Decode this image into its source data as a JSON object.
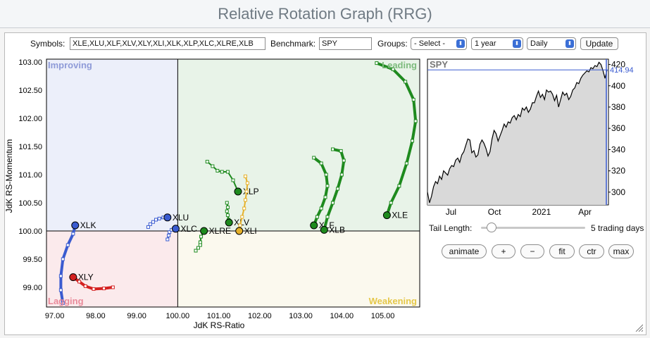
{
  "page_title": "Relative Rotation Graph (RRG)",
  "controls": {
    "symbols_label": "Symbols:",
    "symbols_value": "XLE,XLU,XLF,XLV,XLY,XLI,XLK,XLP,XLC,XLRE,XLB",
    "benchmark_label": "Benchmark:",
    "benchmark_value": "SPY",
    "groups_label": "Groups:",
    "groups_value": "- Select -",
    "period_value": "1 year",
    "frequency_value": "Daily",
    "update_label": "Update"
  },
  "quadrants": {
    "improving": "Improving",
    "leading": "Leading",
    "lagging": "Lagging",
    "weakening": "Weakening",
    "colors": {
      "improving": "#eceffa",
      "leading": "#e8f3e8",
      "lagging": "#fbeaec",
      "weakening": "#fbf9ee"
    }
  },
  "chart_data": [
    {
      "type": "scatter",
      "title": "",
      "xlabel": "JdK RS-Ratio",
      "ylabel": "JdK RS-Momentum",
      "xlim": [
        96.8,
        105.9
      ],
      "ylim": [
        98.65,
        103.05
      ],
      "x_ticks": [
        "97.00",
        "98.00",
        "99.00",
        "100.00",
        "101.00",
        "102.00",
        "103.00",
        "104.00",
        "105.00"
      ],
      "y_ticks": [
        "103.00",
        "102.50",
        "102.00",
        "101.50",
        "101.00",
        "100.50",
        "100.00",
        "99.50",
        "99.00"
      ],
      "grid": false,
      "center": [
        100,
        100
      ],
      "series": [
        {
          "name": "XLE",
          "color": "#1e8a1e",
          "tail": [
            [
              104.85,
              102.98
            ],
            [
              105.25,
              102.87
            ],
            [
              105.55,
              102.65
            ],
            [
              105.75,
              102.33
            ],
            [
              105.8,
              101.95
            ],
            [
              105.72,
              101.6
            ],
            [
              105.58,
              101.2
            ],
            [
              105.4,
              100.8
            ],
            [
              105.2,
              100.5
            ],
            [
              105.1,
              100.28
            ]
          ]
        },
        {
          "name": "XLF",
          "color": "#1e8a1e",
          "tail": [
            [
              103.32,
              101.3
            ],
            [
              103.5,
              101.2
            ],
            [
              103.62,
              101.0
            ],
            [
              103.65,
              100.8
            ],
            [
              103.6,
              100.6
            ],
            [
              103.5,
              100.4
            ],
            [
              103.4,
              100.25
            ],
            [
              103.32,
              100.1
            ]
          ]
        },
        {
          "name": "XLB",
          "color": "#1e8a1e",
          "tail": [
            [
              103.78,
              101.45
            ],
            [
              103.98,
              101.42
            ],
            [
              104.05,
              101.25
            ],
            [
              104.0,
              101.0
            ],
            [
              103.9,
              100.75
            ],
            [
              103.78,
              100.5
            ],
            [
              103.65,
              100.25
            ],
            [
              103.57,
              100.02
            ]
          ]
        },
        {
          "name": "XLP",
          "color": "#1e8a1e",
          "tail": [
            [
              100.72,
              101.23
            ],
            [
              100.85,
              101.15
            ],
            [
              100.97,
              101.07
            ],
            [
              101.08,
              101.05
            ],
            [
              101.22,
              101.05
            ],
            [
              101.35,
              100.9
            ],
            [
              101.47,
              100.7
            ]
          ]
        },
        {
          "name": "XLV",
          "color": "#1e8a1e",
          "tail": [
            [
              101.2,
              100.5
            ],
            [
              101.22,
              100.42
            ],
            [
              101.2,
              100.35
            ],
            [
              101.22,
              100.28
            ],
            [
              101.24,
              100.2
            ],
            [
              101.25,
              100.15
            ]
          ]
        },
        {
          "name": "XLI",
          "color": "#e5b02a",
          "tail": [
            [
              101.65,
              100.97
            ],
            [
              101.7,
              100.85
            ],
            [
              101.68,
              100.7
            ],
            [
              101.65,
              100.55
            ],
            [
              101.62,
              100.4
            ],
            [
              101.57,
              100.25
            ],
            [
              101.52,
              100.1
            ],
            [
              101.5,
              100.0
            ]
          ]
        },
        {
          "name": "XLRE",
          "color": "#1e8a1e",
          "tail": [
            [
              100.44,
              99.65
            ],
            [
              100.5,
              99.7
            ],
            [
              100.55,
              99.75
            ],
            [
              100.55,
              99.8
            ],
            [
              100.57,
              99.9
            ],
            [
              100.62,
              99.97
            ],
            [
              100.64,
              100.0
            ]
          ]
        },
        {
          "name": "XLU",
          "color": "#3a5bd0",
          "tail": [
            [
              99.28,
              100.07
            ],
            [
              99.33,
              100.12
            ],
            [
              99.4,
              100.16
            ],
            [
              99.47,
              100.2
            ],
            [
              99.55,
              100.22
            ],
            [
              99.65,
              100.24
            ],
            [
              99.75,
              100.24
            ]
          ]
        },
        {
          "name": "XLC",
          "color": "#3a5bd0",
          "tail": [
            [
              99.75,
              99.85
            ],
            [
              99.78,
              99.92
            ],
            [
              99.8,
              99.98
            ],
            [
              99.85,
              100.02
            ],
            [
              99.95,
              100.04
            ]
          ]
        },
        {
          "name": "XLK",
          "color": "#3a5bd0",
          "tail": [
            [
              97.2,
              98.72
            ],
            [
              97.15,
              98.95
            ],
            [
              97.15,
              99.2
            ],
            [
              97.2,
              99.5
            ],
            [
              97.32,
              99.75
            ],
            [
              97.45,
              99.95
            ],
            [
              97.5,
              100.1
            ]
          ]
        },
        {
          "name": "XLY",
          "color": "#d42020",
          "tail": [
            [
              98.42,
              99.0
            ],
            [
              98.2,
              98.98
            ],
            [
              97.95,
              98.97
            ],
            [
              97.75,
              99.02
            ],
            [
              97.6,
              99.1
            ],
            [
              97.45,
              99.18
            ]
          ]
        }
      ]
    },
    {
      "type": "area",
      "title": "SPY",
      "last_value_label": "414.94",
      "x_ticks": [
        "Jul",
        "Oct",
        "2021",
        "Apr"
      ],
      "y_ticks": [
        "420",
        "400",
        "380",
        "360",
        "340",
        "320",
        "300"
      ],
      "ylim": [
        288,
        425
      ],
      "series": [
        {
          "name": "SPY",
          "values": [
            300,
            290,
            296,
            305,
            310,
            308,
            315,
            312,
            320,
            318,
            316,
            322,
            325,
            324,
            330,
            332,
            328,
            335,
            338,
            344,
            350,
            349,
            337,
            339,
            333,
            335,
            345,
            349,
            346,
            341,
            334,
            338,
            350,
            358,
            355,
            348,
            353,
            358,
            364,
            361,
            366,
            365,
            370,
            372,
            368,
            373,
            371,
            379,
            377,
            380,
            375,
            378,
            384,
            384,
            390,
            395,
            389,
            392,
            387,
            396,
            394,
            395,
            392,
            386,
            391,
            380,
            387,
            394,
            391,
            393,
            387,
            390,
            396,
            398,
            403,
            402,
            407,
            410,
            412,
            414,
            413,
            417,
            416,
            419,
            418,
            422,
            420,
            414,
            407,
            414.94
          ]
        }
      ]
    }
  ],
  "right_panel": {
    "tail_length_label": "Tail Length:",
    "tail_length_value": "5 trading days",
    "tail_length_fraction": 0.1,
    "buttons": [
      "animate",
      "+",
      "−",
      "fit",
      "ctr",
      "max"
    ]
  }
}
